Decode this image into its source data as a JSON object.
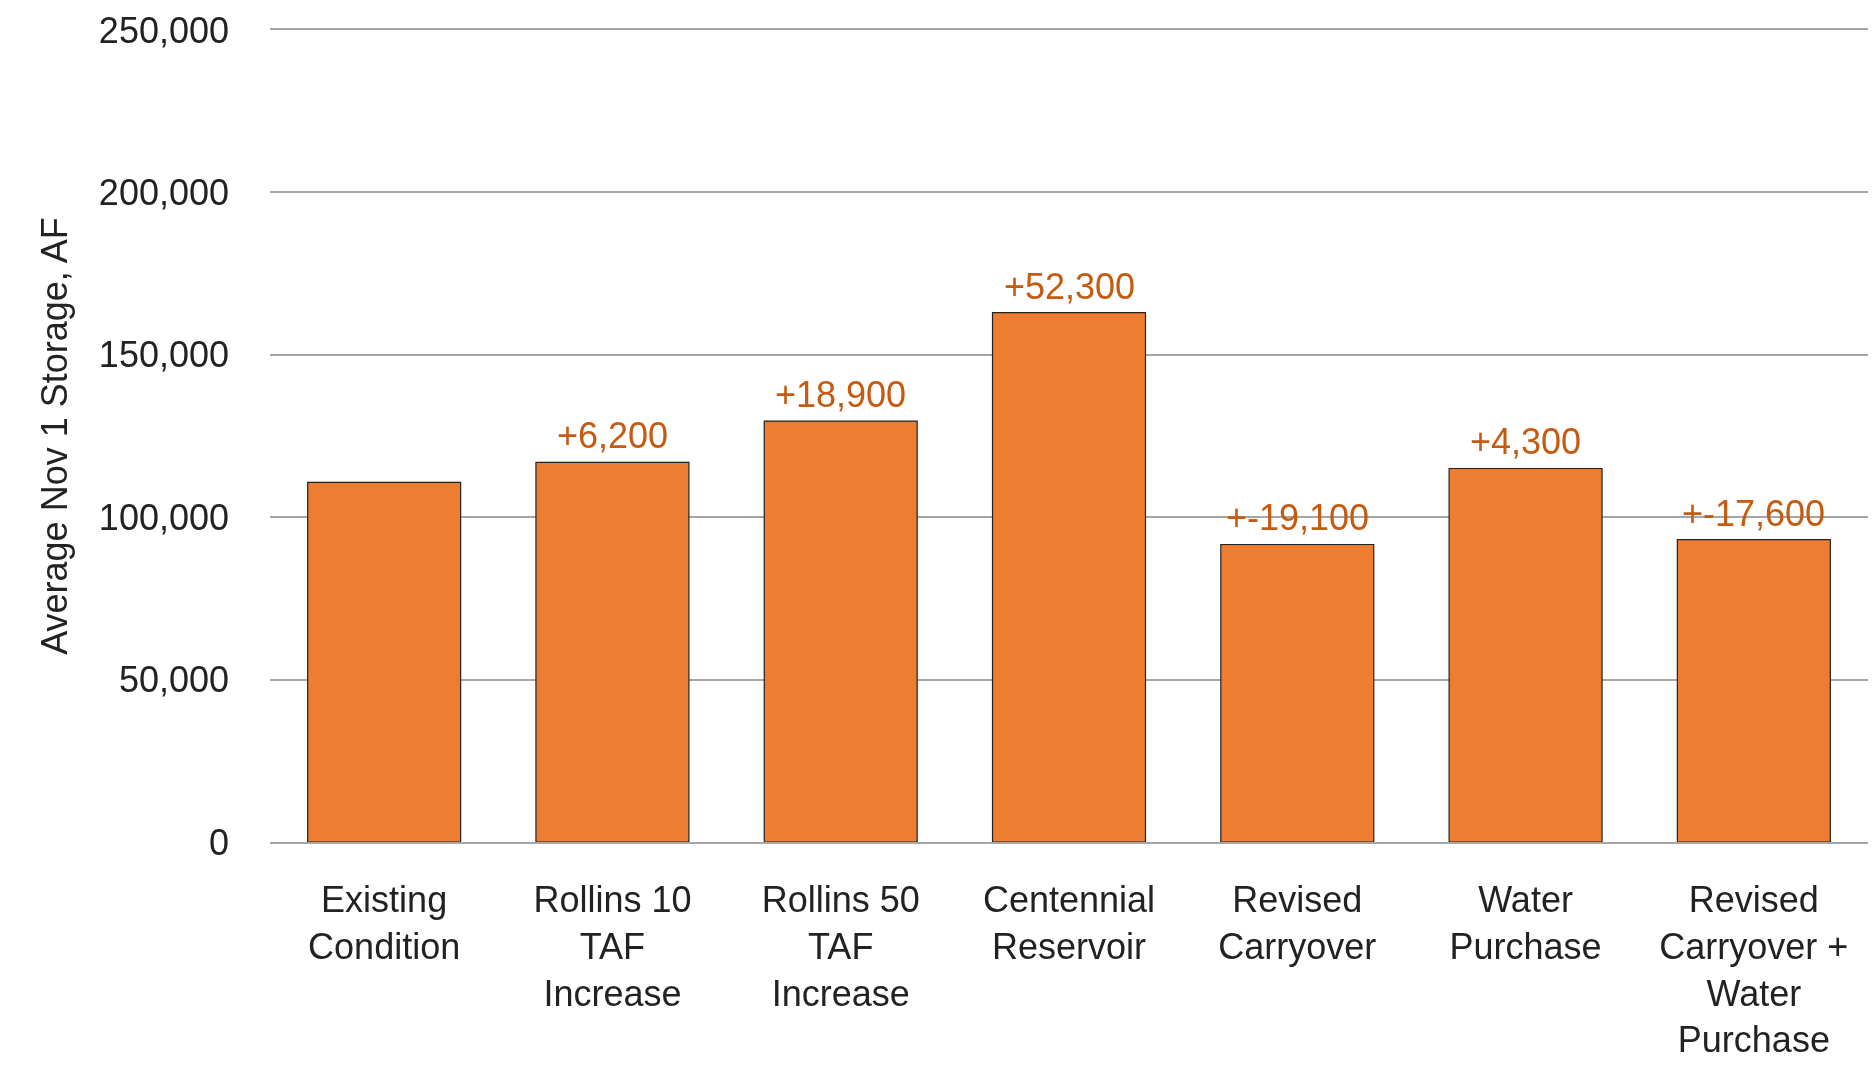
{
  "chart_data": {
    "type": "bar",
    "ylabel": "Average Nov 1 Storage, AF",
    "categories": [
      "Existing\nCondition",
      "Rollins 10\nTAF\nIncrease",
      "Rollins 50\nTAF\nIncrease",
      "Centennial\nReservoir",
      "Revised\nCarryover",
      "Water\nPurchase",
      "Revised\nCarryover +\nWater\nPurchase"
    ],
    "values": [
      110700,
      116900,
      129600,
      163000,
      91600,
      115000,
      93100
    ],
    "annotations": [
      {
        "text": "+6,200",
        "x": "Rollins 10\nTAF\nIncrease",
        "y": 116900
      },
      {
        "text": "+18,900",
        "x": "Rollins 50\nTAF\nIncrease",
        "y": 129600
      },
      {
        "text": "+52,300",
        "x": "Centennial\nReservoir",
        "y": 163000
      },
      {
        "text": "+-19,100",
        "x": "Revised\nCarryover",
        "y": 91600
      },
      {
        "text": "+4,300",
        "x": "Water\nPurchase",
        "y": 115000
      },
      {
        "text": "+-17,600",
        "x": "Revised\nCarryover +\nWater\nPurchase",
        "y": 93100
      }
    ],
    "color": "#ed7d31",
    "ylim": [
      0,
      250000
    ],
    "yticks": [
      {
        "value": 0,
        "label": "0"
      },
      {
        "value": 50000,
        "label": "50,000"
      },
      {
        "value": 100000,
        "label": "100,000"
      },
      {
        "value": 150000,
        "label": "150,000"
      },
      {
        "value": 200000,
        "label": "200,000"
      },
      {
        "value": 250000,
        "label": "250,000"
      }
    ],
    "grid": "y",
    "legend": false
  }
}
